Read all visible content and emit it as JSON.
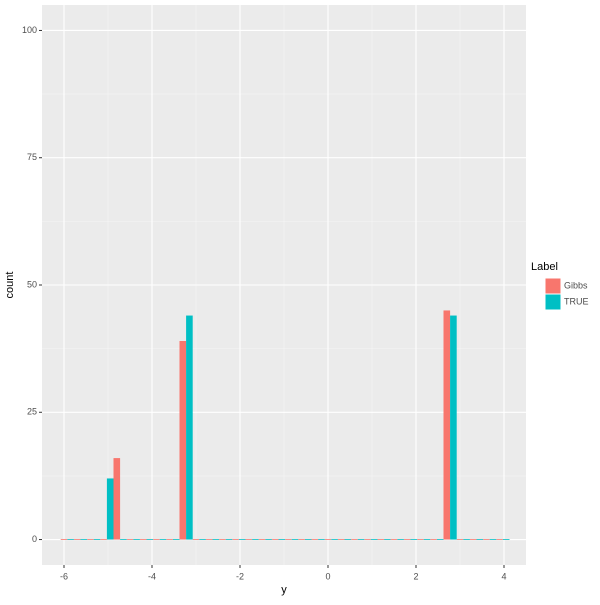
{
  "chart_data": {
    "type": "histogram",
    "xlabel": "y",
    "ylabel": "count",
    "legend_title": "Label",
    "legend_position": "right",
    "bins": [
      -6.075,
      -5.775,
      -5.475,
      -5.175,
      -4.875,
      -4.575,
      -4.275,
      -3.975,
      -3.675,
      -3.375,
      -3.075,
      -2.775,
      -2.475,
      -2.175,
      -1.875,
      -1.575,
      -1.275,
      -0.975,
      -0.675,
      -0.375,
      -0.075,
      0.225,
      0.525,
      0.825,
      1.125,
      1.425,
      1.725,
      2.025,
      2.325,
      2.625,
      2.925,
      3.225,
      3.525,
      3.825,
      4.125
    ],
    "series": [
      {
        "name": "Gibbs",
        "color": "#f8766d",
        "values": [
          0,
          0,
          0,
          0,
          16,
          0,
          0,
          0,
          0,
          39,
          0,
          0,
          0,
          0,
          0,
          0,
          0,
          0,
          0,
          0,
          0,
          0,
          0,
          0,
          0,
          0,
          0,
          0,
          0,
          45,
          0,
          0,
          0,
          0
        ]
      },
      {
        "name": "TRUE",
        "color": "#00bfc4",
        "values": [
          0,
          0,
          0,
          12,
          0,
          0,
          0,
          0,
          0,
          44,
          0,
          0,
          0,
          0,
          0,
          0,
          0,
          0,
          0,
          0,
          0,
          0,
          0,
          0,
          0,
          0,
          0,
          0,
          0,
          44,
          0,
          0,
          0,
          0
        ]
      }
    ],
    "xlim": [
      -6.5,
      4.5
    ],
    "xticks": [
      -6,
      -4,
      -2,
      0,
      2,
      4
    ],
    "ylim": [
      -5,
      105
    ],
    "yticks": [
      0,
      25,
      50,
      75,
      100
    ],
    "grid": true
  }
}
